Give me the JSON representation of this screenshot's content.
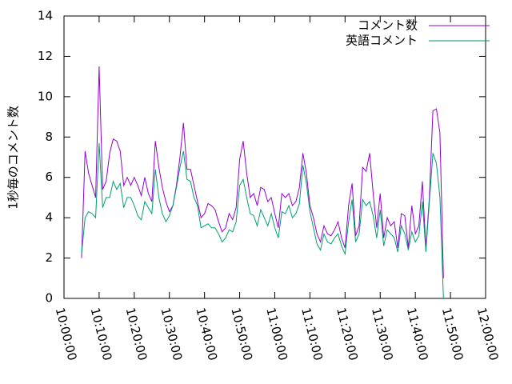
{
  "chart_data": {
    "type": "line",
    "ylabel": "1秒毎のコメント数",
    "x": [
      "10:05:00",
      "10:06:00",
      "10:07:00",
      "10:08:00",
      "10:09:00",
      "10:10:00",
      "10:11:00",
      "10:12:00",
      "10:13:00",
      "10:14:00",
      "10:15:00",
      "10:16:00",
      "10:17:00",
      "10:18:00",
      "10:19:00",
      "10:20:00",
      "10:21:00",
      "10:22:00",
      "10:23:00",
      "10:24:00",
      "10:25:00",
      "10:26:00",
      "10:27:00",
      "10:28:00",
      "10:29:00",
      "10:30:00",
      "10:31:00",
      "10:32:00",
      "10:33:00",
      "10:34:00",
      "10:35:00",
      "10:36:00",
      "10:37:00",
      "10:38:00",
      "10:39:00",
      "10:40:00",
      "10:41:00",
      "10:42:00",
      "10:43:00",
      "10:44:00",
      "10:45:00",
      "10:46:00",
      "10:47:00",
      "10:48:00",
      "10:49:00",
      "10:50:00",
      "10:51:00",
      "10:52:00",
      "10:53:00",
      "10:54:00",
      "10:55:00",
      "10:56:00",
      "10:57:00",
      "10:58:00",
      "10:59:00",
      "11:00:00",
      "11:01:00",
      "11:02:00",
      "11:03:00",
      "11:04:00",
      "11:05:00",
      "11:06:00",
      "11:07:00",
      "11:08:00",
      "11:09:00",
      "11:10:00",
      "11:11:00",
      "11:12:00",
      "11:13:00",
      "11:14:00",
      "11:15:00",
      "11:16:00",
      "11:17:00",
      "11:18:00",
      "11:19:00",
      "11:20:00",
      "11:21:00",
      "11:22:00",
      "11:23:00",
      "11:24:00",
      "11:25:00",
      "11:26:00",
      "11:27:00",
      "11:28:00",
      "11:29:00",
      "11:30:00",
      "11:31:00",
      "11:32:00",
      "11:33:00",
      "11:34:00",
      "11:35:00",
      "11:36:00",
      "11:37:00",
      "11:38:00",
      "11:39:00",
      "11:40:00",
      "11:41:00",
      "11:42:00",
      "11:43:00",
      "11:44:00",
      "11:45:00",
      "11:46:00",
      "11:47:00",
      "11:48:00"
    ],
    "series": [
      {
        "name": "コメント数",
        "color": "#9400d3",
        "values": [
          2.0,
          7.3,
          6.2,
          5.6,
          5.0,
          11.5,
          5.4,
          5.8,
          7.2,
          7.9,
          7.8,
          7.3,
          5.6,
          6.0,
          5.6,
          6.0,
          5.6,
          5.1,
          6.0,
          5.2,
          4.8,
          7.8,
          6.5,
          5.5,
          4.8,
          4.3,
          4.6,
          5.6,
          7.0,
          8.7,
          6.4,
          6.4,
          5.6,
          4.8,
          4.0,
          4.2,
          4.7,
          4.6,
          4.4,
          3.8,
          3.3,
          3.5,
          4.2,
          3.9,
          4.5,
          6.9,
          7.8,
          6.2,
          5.0,
          5.2,
          4.6,
          5.5,
          5.4,
          4.8,
          5.0,
          4.2,
          3.5,
          5.2,
          5.0,
          5.2,
          4.6,
          4.8,
          5.5,
          7.2,
          6.2,
          4.6,
          4.0,
          3.2,
          2.8,
          3.6,
          3.2,
          3.1,
          3.4,
          3.8,
          3.0,
          2.5,
          4.6,
          5.7,
          3.1,
          3.6,
          6.5,
          6.3,
          7.2,
          5.2,
          3.5,
          5.2,
          3.0,
          4.0,
          3.6,
          3.8,
          2.5,
          4.2,
          4.1,
          2.5,
          4.6,
          3.2,
          3.6,
          5.8,
          2.5,
          5.0,
          9.3,
          9.4,
          8.2,
          1.0
        ]
      },
      {
        "name": "英語コメント",
        "color": "#009e73",
        "values": [
          2.2,
          4.0,
          4.3,
          4.2,
          4.0,
          7.7,
          4.5,
          5.0,
          5.0,
          5.8,
          5.4,
          5.7,
          4.5,
          5.0,
          5.0,
          4.6,
          4.1,
          3.9,
          4.8,
          4.5,
          4.2,
          6.4,
          5.0,
          4.2,
          3.8,
          4.1,
          4.6,
          5.5,
          6.5,
          7.3,
          5.9,
          5.8,
          5.0,
          4.6,
          3.5,
          3.6,
          3.7,
          3.5,
          3.5,
          3.2,
          2.8,
          3.0,
          3.4,
          3.3,
          3.8,
          5.6,
          5.9,
          5.0,
          4.2,
          4.1,
          3.6,
          4.4,
          4.0,
          3.6,
          4.2,
          3.5,
          3.0,
          4.3,
          4.2,
          4.6,
          4.0,
          4.2,
          4.7,
          6.6,
          5.7,
          4.3,
          3.5,
          2.7,
          2.4,
          3.2,
          2.8,
          2.7,
          3.0,
          3.2,
          2.6,
          2.2,
          3.8,
          4.9,
          2.8,
          3.2,
          4.9,
          4.6,
          4.8,
          4.1,
          3.0,
          4.4,
          2.6,
          3.4,
          3.2,
          3.0,
          2.3,
          3.6,
          3.2,
          2.4,
          3.3,
          2.8,
          3.1,
          4.8,
          2.3,
          4.8,
          7.2,
          6.7,
          5.0,
          0.0
        ]
      }
    ],
    "xlim": [
      "10:00:00",
      "12:00:00"
    ],
    "xticks": [
      "10:00:00",
      "10:10:00",
      "10:20:00",
      "10:30:00",
      "10:40:00",
      "10:50:00",
      "11:00:00",
      "11:10:00",
      "11:20:00",
      "11:30:00",
      "11:40:00",
      "11:50:00",
      "12:00:00"
    ],
    "ylim": [
      0,
      14
    ],
    "yticks": [
      0,
      2,
      4,
      6,
      8,
      10,
      12,
      14
    ],
    "legend": "upper-right",
    "grid": false
  }
}
